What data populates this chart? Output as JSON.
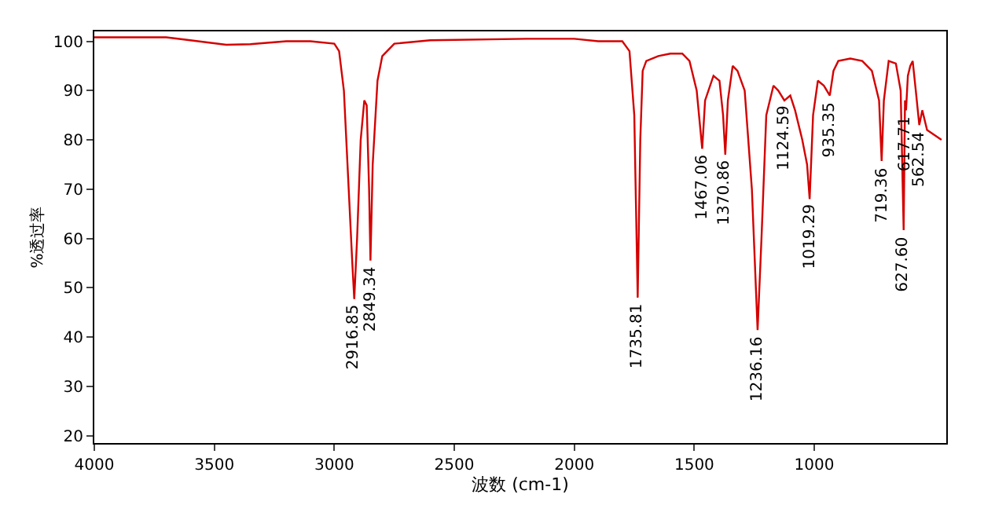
{
  "chart_data": {
    "type": "line",
    "xlabel": "波数 (cm-1)",
    "ylabel": "%透过率",
    "xlim": [
      4000,
      450
    ],
    "xticks": [
      4000,
      3500,
      3000,
      2500,
      2000,
      1500,
      1000
    ],
    "ylim": [
      18.5,
      102
    ],
    "yticks": [
      20,
      30,
      40,
      50,
      60,
      70,
      80,
      90,
      100
    ],
    "marker": "none",
    "line_style": "solid",
    "series": [
      {
        "color": "#d40000",
        "x": [
          4000,
          3700,
          3600,
          3450,
          3350,
          3200,
          3100,
          3000,
          2980,
          2960,
          2940,
          2925,
          2916.85,
          2905,
          2890,
          2875,
          2865,
          2855,
          2849.34,
          2840,
          2820,
          2800,
          2750,
          2600,
          2200,
          2000,
          1900,
          1800,
          1770,
          1750,
          1735.81,
          1725,
          1715,
          1700,
          1650,
          1600,
          1550,
          1520,
          1490,
          1467.06,
          1455,
          1420,
          1395,
          1380,
          1370.86,
          1360,
          1340,
          1320,
          1290,
          1260,
          1236.16,
          1220,
          1200,
          1170,
          1150,
          1124.59,
          1100,
          1080,
          1050,
          1030,
          1019.29,
          1005,
          985,
          960,
          935.35,
          920,
          900,
          850,
          800,
          760,
          730,
          719.36,
          710,
          690,
          660,
          640,
          627.6,
          622,
          617.71,
          610,
          600,
          590,
          577,
          562.54,
          550,
          530,
          470
        ],
        "values": [
          100.8,
          100.8,
          100.2,
          99.3,
          99.4,
          100,
          100,
          99.5,
          98,
          90,
          70,
          55,
          47.7,
          60,
          80,
          88,
          87,
          70,
          55.5,
          75,
          92,
          97,
          99.5,
          100.2,
          100.5,
          100.5,
          100,
          100,
          98,
          85,
          48,
          80,
          94,
          96,
          97,
          97.5,
          97.5,
          96,
          90,
          78.2,
          88,
          93,
          92,
          85,
          77,
          88,
          95,
          94,
          90,
          70,
          41.4,
          60,
          85,
          91,
          90,
          88,
          89,
          86,
          80,
          75,
          68,
          85,
          92,
          91,
          89,
          94,
          96,
          96.5,
          96,
          94,
          88,
          75.7,
          88,
          96,
          95.5,
          90,
          61.7,
          88,
          86,
          93,
          95,
          96,
          90,
          83,
          86,
          82,
          80
        ]
      }
    ],
    "annotations": [
      {
        "text": "2916.85",
        "x": 2916.85,
        "y": 47.7
      },
      {
        "text": "2849.34",
        "x": 2849.34,
        "y": 55.5
      },
      {
        "text": "1735.81",
        "x": 1735.81,
        "y": 48
      },
      {
        "text": "1467.06",
        "x": 1467.06,
        "y": 78.2
      },
      {
        "text": "1370.86",
        "x": 1370.86,
        "y": 77
      },
      {
        "text": "1236.16",
        "x": 1236.16,
        "y": 41.4
      },
      {
        "text": "1124.59",
        "x": 1124.59,
        "y": 88
      },
      {
        "text": "1019.29",
        "x": 1019.29,
        "y": 68
      },
      {
        "text": "935.35",
        "x": 935.35,
        "y": 89
      },
      {
        "text": "719.36",
        "x": 719.36,
        "y": 75.7
      },
      {
        "text": "627.60",
        "x": 627.6,
        "y": 61.7
      },
      {
        "text": "617.71",
        "x": 617.71,
        "y": 86
      },
      {
        "text": "562.54",
        "x": 562.54,
        "y": 83
      }
    ]
  }
}
